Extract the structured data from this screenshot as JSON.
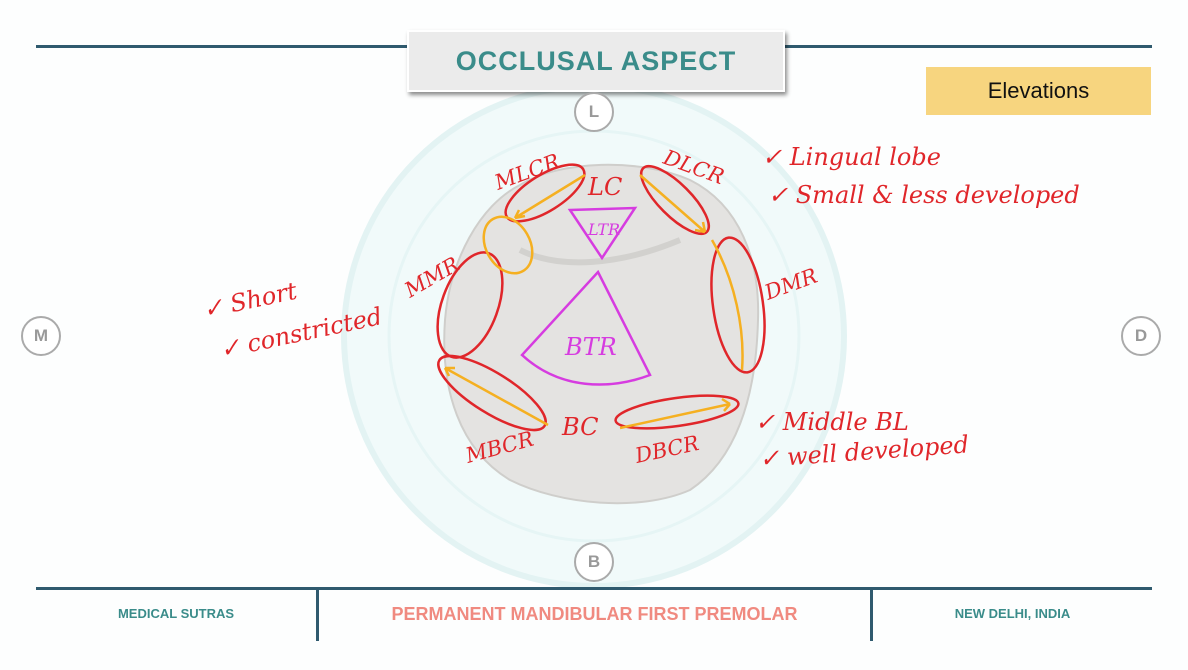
{
  "header": {
    "title": "OCCLUSAL ASPECT",
    "tag": "Elevations"
  },
  "directions": {
    "lingual": "L",
    "buccal": "B",
    "mesial": "M",
    "distal": "D"
  },
  "annotations": {
    "lc": "LC",
    "bc": "BC",
    "ltr": "LTR",
    "btr": "BTR",
    "mlcr": "MLCR",
    "dlcr": "DLCR",
    "mmr": "MMR",
    "dmr": "DMR",
    "mbcr": "MBCR",
    "dbcr": "DBCR",
    "lingual_notes": [
      "✓ Lingual lobe",
      "✓ Small & less developed"
    ],
    "mmr_notes": [
      "✓ Short",
      "✓ constricted"
    ],
    "bc_notes": [
      "✓ Middle BL",
      "✓ well developed"
    ]
  },
  "footer": {
    "left": "MEDICAL SUTRAS",
    "center": "PERMANENT MANDIBULAR FIRST PREMOLAR",
    "right": "NEW DELHI, INDIA"
  },
  "colors": {
    "teal": "#3a8c8a",
    "navy": "#2f5a6e",
    "salmon": "#f08a80",
    "ink_red": "#e0262a",
    "ink_orange": "#f5b021",
    "ink_magenta": "#d63ce0",
    "tag_yellow": "#f7d57f"
  }
}
